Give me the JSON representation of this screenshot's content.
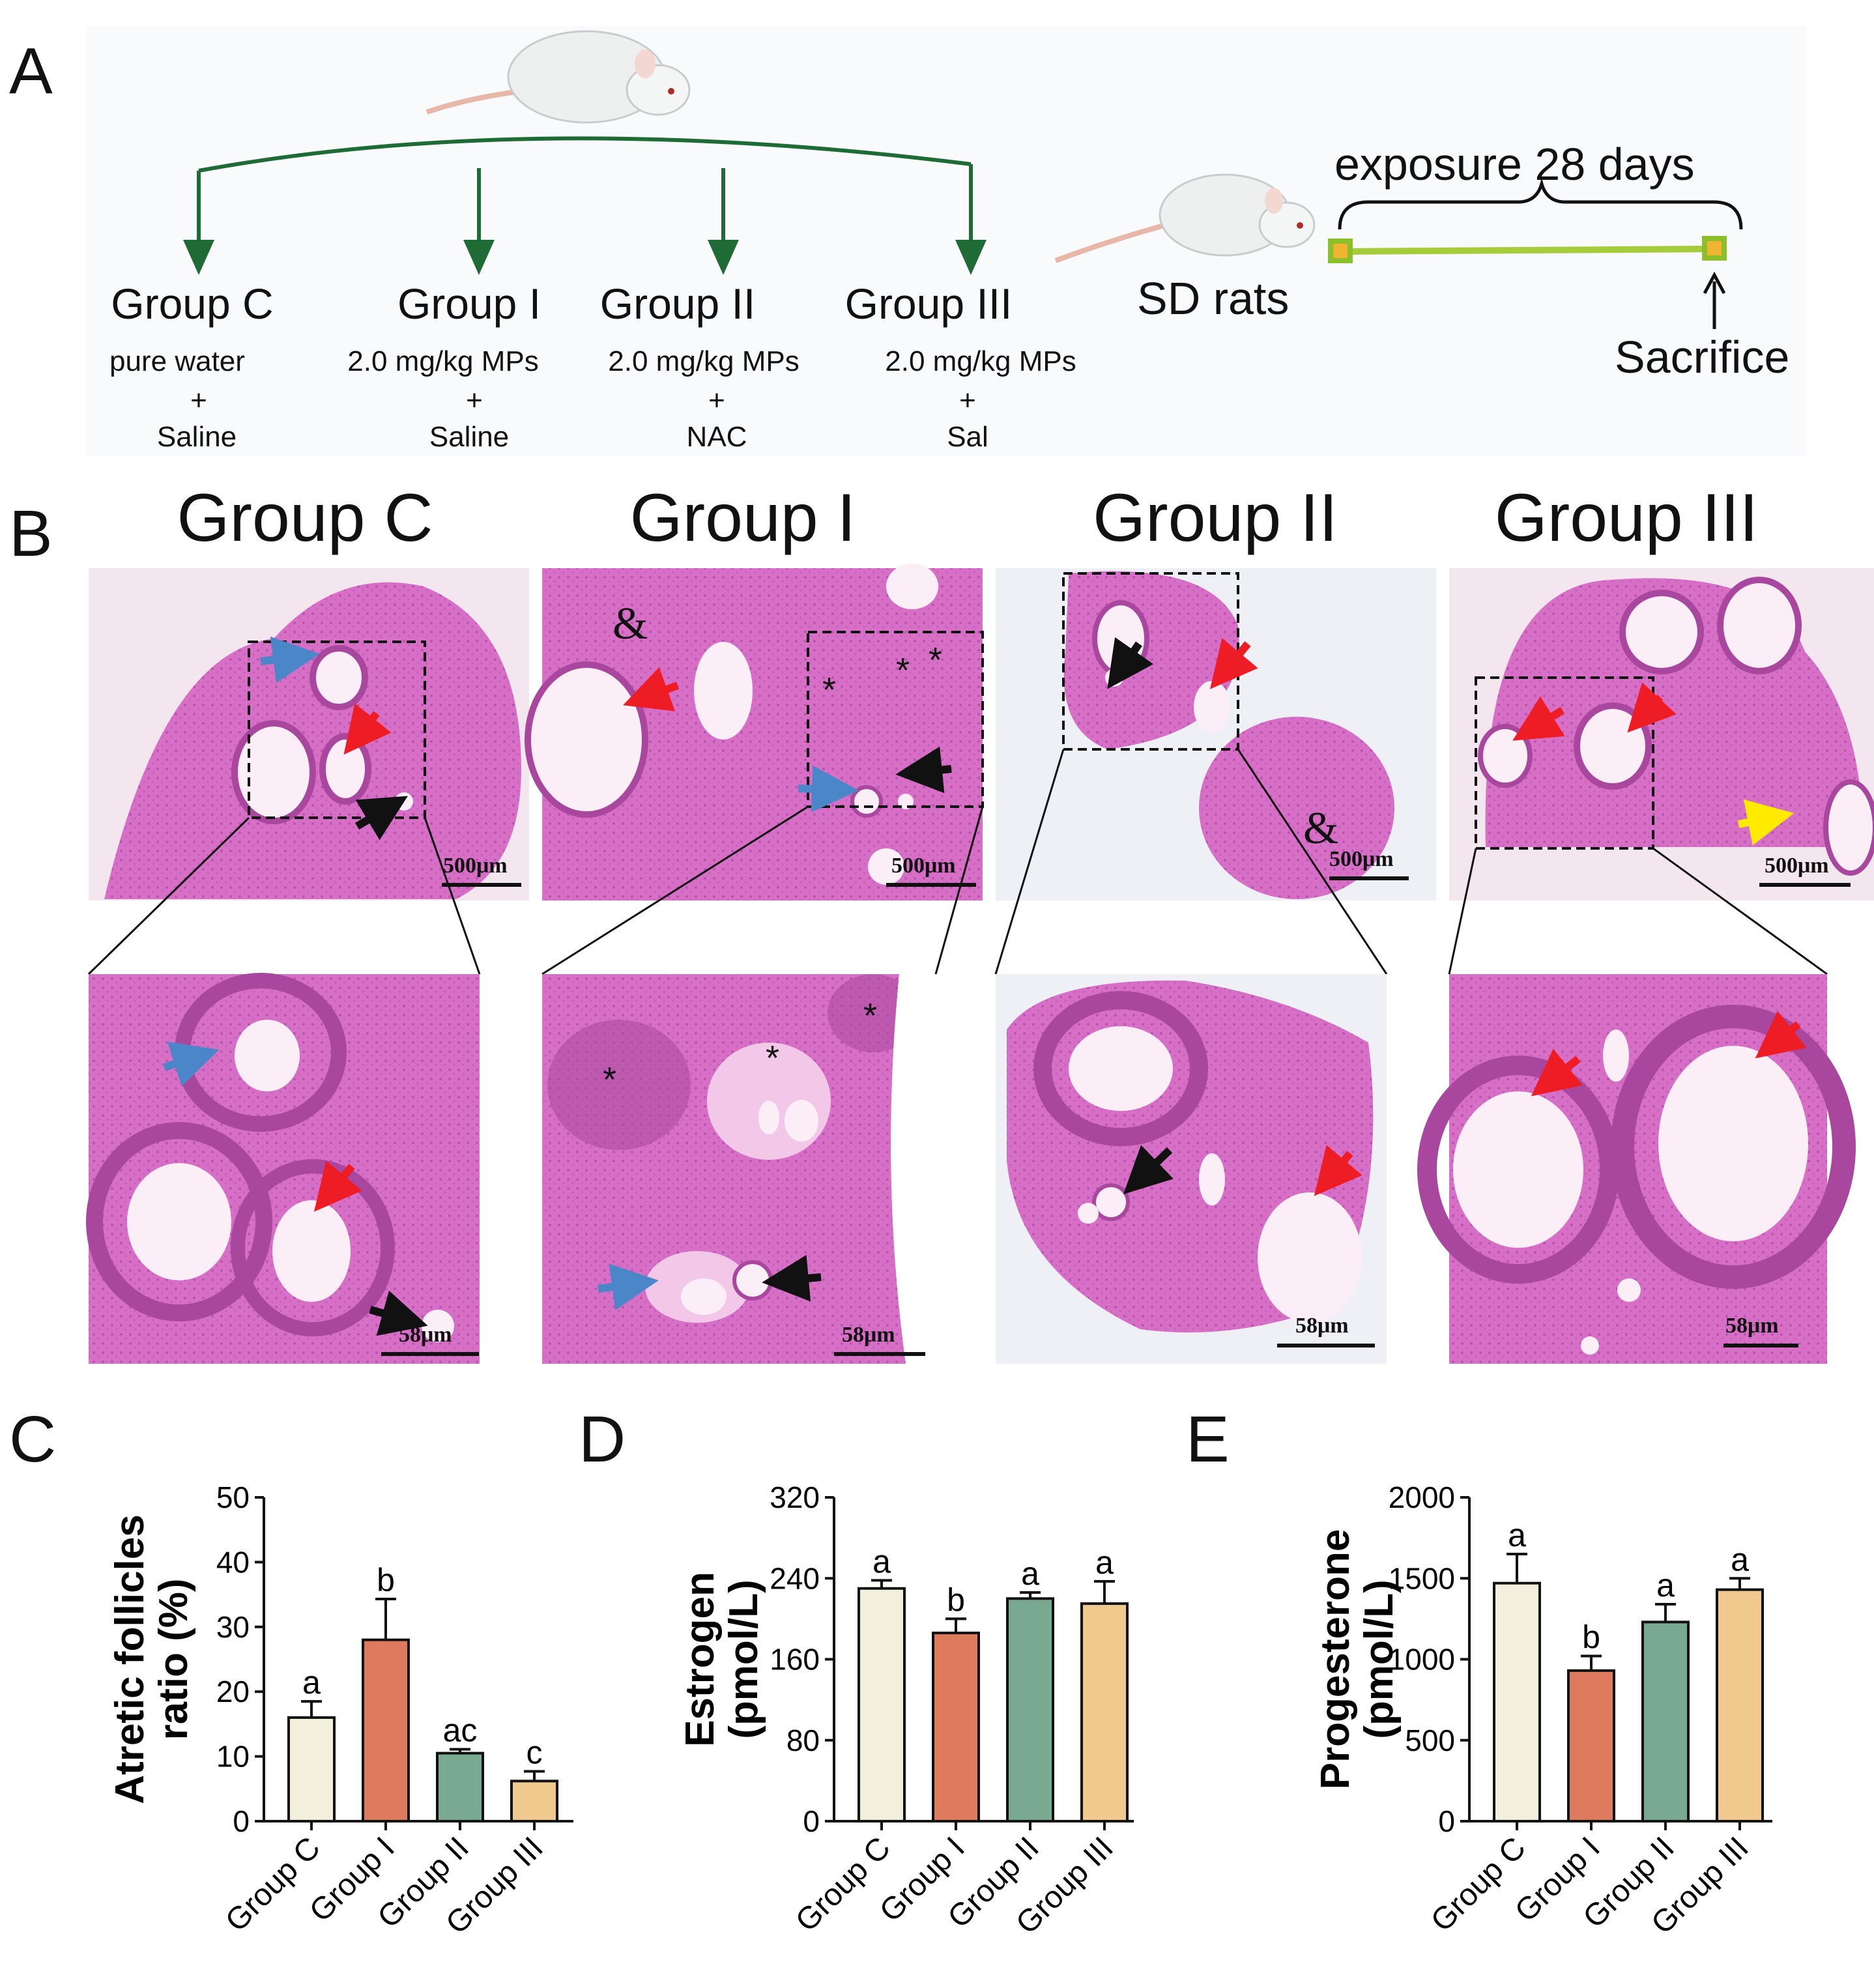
{
  "panels": {
    "A": "A",
    "B": "B",
    "C": "C",
    "D": "D",
    "E": "E"
  },
  "panel_a": {
    "groups": [
      {
        "title": "Group C",
        "line1": "pure water",
        "plus": "+",
        "line2": "Saline"
      },
      {
        "title": "Group I",
        "line1": "2.0 mg/kg MPs",
        "plus": "+",
        "line2": "Saline"
      },
      {
        "title": "Group II",
        "line1": "2.0 mg/kg MPs",
        "plus": "+",
        "line2": "NAC"
      },
      {
        "title": "Group III",
        "line1": "2.0 mg/kg MPs",
        "plus": "+",
        "line2": "Sal"
      }
    ],
    "rats_label": "SD rats",
    "exposure_label": "exposure 28 days",
    "sacrifice_label": "Sacrifice"
  },
  "panel_b": {
    "titles": [
      "Group C",
      "Group I",
      "Group II",
      "Group III"
    ],
    "scale_top": "500μm",
    "scale_bottom": "58μm",
    "markers": {
      "star": "*",
      "amp": "&"
    }
  },
  "colors": {
    "tissue_bg": "#f3dfee",
    "tissue": "#d86fc6",
    "tissue_dark": "#a9479f",
    "cavity": "#fbeef6",
    "arrow_red": "#ee1c25",
    "arrow_blue": "#4a86c8",
    "arrow_black": "#111111",
    "arrow_yellow": "#ffea00",
    "tree_green": "#1e6b35",
    "timeline_green": "#a4cc3b",
    "bar_C": "#f2efdc",
    "bar_I": "#de7a5e",
    "bar_II": "#7aa992",
    "bar_III": "#f0c98e"
  },
  "chart_data": [
    {
      "type": "bar",
      "panel": "C",
      "categories": [
        "Group C",
        "Group I",
        "Group II",
        "Group III"
      ],
      "values": [
        16,
        28,
        10.5,
        6.2
      ],
      "errors": [
        2.5,
        6.3,
        0.6,
        1.5
      ],
      "significance": [
        "a",
        "b",
        "ac",
        "c"
      ],
      "ylabel_line1": "Atretic follicles",
      "ylabel_line2": "ratio (%)",
      "ylim": [
        0,
        50
      ],
      "yticks": [
        "0",
        "10",
        "20",
        "30",
        "40",
        "50"
      ]
    },
    {
      "type": "bar",
      "panel": "D",
      "categories": [
        "Group C",
        "Group I",
        "Group II",
        "Group III"
      ],
      "values": [
        230,
        186,
        220,
        215
      ],
      "errors": [
        8,
        14,
        6,
        22
      ],
      "significance": [
        "a",
        "b",
        "a",
        "a"
      ],
      "ylabel_line1": "Estrogen",
      "ylabel_line2": "(pmol/L)",
      "ylim": [
        0,
        320
      ],
      "yticks": [
        "0",
        "80",
        "160",
        "240",
        "320"
      ]
    },
    {
      "type": "bar",
      "panel": "E",
      "categories": [
        "Group C",
        "Group I",
        "Group II",
        "Group III"
      ],
      "values": [
        1470,
        930,
        1230,
        1430
      ],
      "errors": [
        180,
        90,
        110,
        70
      ],
      "significance": [
        "a",
        "b",
        "a",
        "a"
      ],
      "ylabel_line1": "Progesterone",
      "ylabel_line2": "(pmol/L)",
      "ylim": [
        0,
        2000
      ],
      "yticks": [
        "0",
        "500",
        "1000",
        "1500",
        "2000"
      ]
    }
  ]
}
